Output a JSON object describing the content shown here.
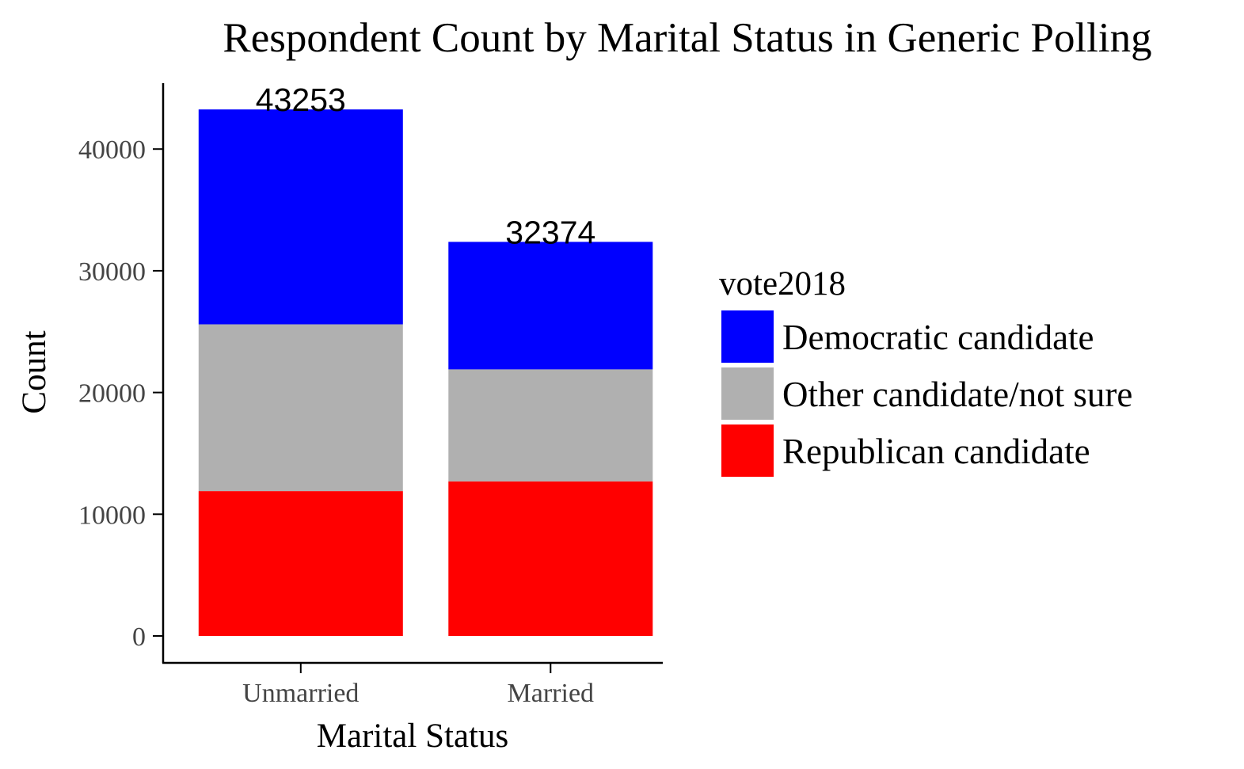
{
  "chart_data": {
    "type": "bar",
    "stacked": true,
    "title": "Respondent Count by Marital Status in Generic Polling",
    "xlabel": "Marital Status",
    "ylabel": "Count",
    "categories": [
      "Unmarried",
      "Married"
    ],
    "ylim": [
      0,
      45000
    ],
    "yticks": [
      0,
      10000,
      20000,
      30000,
      40000
    ],
    "ytick_labels": [
      "0",
      "10000",
      "20000",
      "30000",
      "40000"
    ],
    "grid": false,
    "legend": {
      "title": "vote2018",
      "position": "right"
    },
    "series": [
      {
        "name": "Republican candidate",
        "color": "#ff0000",
        "values": [
          11900,
          12700
        ]
      },
      {
        "name": "Other candidate/not sure",
        "color": "#b0b0b0",
        "values": [
          13700,
          9200
        ]
      },
      {
        "name": "Democratic candidate",
        "color": "#0000ff",
        "values": [
          17653,
          10474
        ]
      }
    ],
    "totals": [
      43253,
      32374
    ],
    "total_labels": [
      "43253",
      "32374"
    ],
    "legend_order": [
      "Democratic candidate",
      "Other candidate/not sure",
      "Republican candidate"
    ]
  }
}
